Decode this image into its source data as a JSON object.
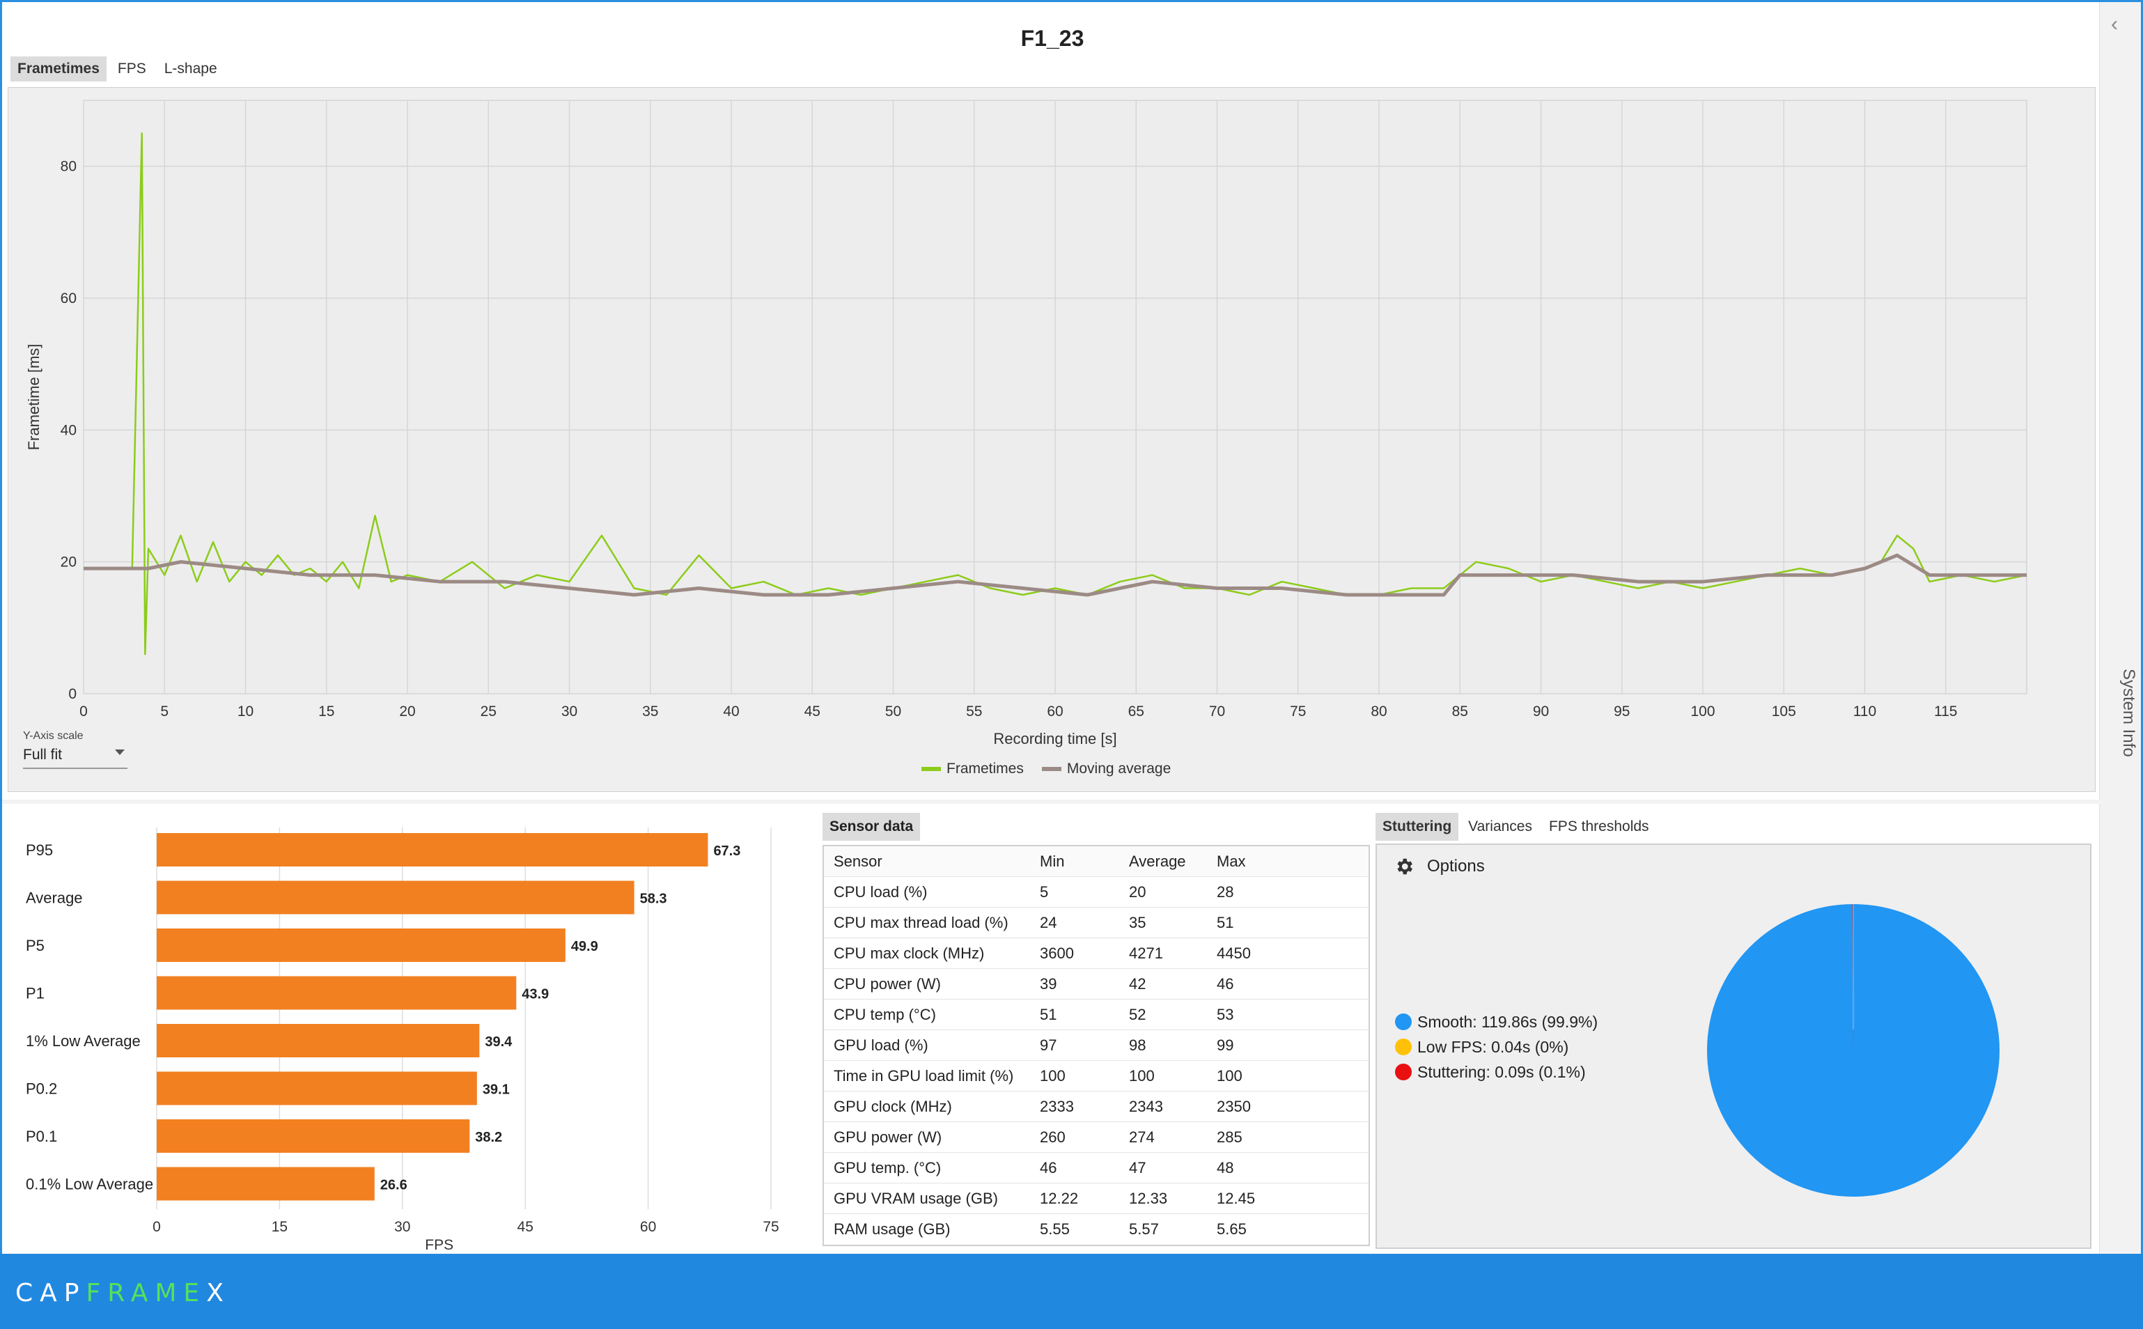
{
  "title": "F1_23",
  "side_panel_label": "System Info",
  "tabs": [
    {
      "label": "Frametimes",
      "active": true
    },
    {
      "label": "FPS",
      "active": false
    },
    {
      "label": "L-shape",
      "active": false
    }
  ],
  "y_axis_scale": {
    "label": "Y-Axis scale",
    "value": "Full fit"
  },
  "chart_data": [
    {
      "type": "line",
      "xlabel": "Recording time [s]",
      "ylabel": "Frametime [ms]",
      "xlim": [
        0,
        120
      ],
      "ylim": [
        0,
        90
      ],
      "xticks": [
        0,
        5,
        10,
        15,
        20,
        25,
        30,
        35,
        40,
        45,
        50,
        55,
        60,
        65,
        70,
        75,
        80,
        85,
        90,
        95,
        100,
        105,
        110,
        115
      ],
      "yticks": [
        0,
        20,
        40,
        60,
        80
      ],
      "grid": true,
      "legend": "bottom-center",
      "series": [
        {
          "name": "Frametimes",
          "color": "#8ccc1a",
          "x": [
            0,
            3,
            3.6,
            3.7,
            3.8,
            4,
            5,
            6,
            7,
            8,
            9,
            10,
            11,
            12,
            13,
            14,
            15,
            16,
            17,
            18,
            19,
            20,
            22,
            24,
            26,
            28,
            30,
            32,
            34,
            36,
            38,
            40,
            42,
            44,
            46,
            48,
            50,
            52,
            54,
            56,
            58,
            60,
            62,
            64,
            66,
            68,
            70,
            72,
            74,
            76,
            78,
            80,
            82,
            84,
            85,
            86,
            88,
            90,
            92,
            94,
            96,
            98,
            100,
            102,
            104,
            106,
            108,
            110,
            111,
            112,
            113,
            114,
            116,
            118,
            120
          ],
          "y": [
            19,
            19,
            85,
            46,
            6,
            22,
            18,
            24,
            17,
            23,
            17,
            20,
            18,
            21,
            18,
            19,
            17,
            20,
            16,
            27,
            17,
            18,
            17,
            20,
            16,
            18,
            17,
            24,
            16,
            15,
            21,
            16,
            17,
            15,
            16,
            15,
            16,
            17,
            18,
            16,
            15,
            16,
            15,
            17,
            18,
            16,
            16,
            15,
            17,
            16,
            15,
            15,
            16,
            16,
            18,
            20,
            19,
            17,
            18,
            17,
            16,
            17,
            16,
            17,
            18,
            19,
            18,
            19,
            20,
            24,
            22,
            17,
            18,
            17,
            18
          ]
        },
        {
          "name": "Moving average",
          "color": "#9c8a85",
          "x": [
            0,
            4,
            6,
            10,
            14,
            18,
            22,
            26,
            30,
            34,
            38,
            42,
            46,
            50,
            54,
            58,
            62,
            66,
            70,
            74,
            78,
            82,
            84,
            85,
            88,
            92,
            96,
            100,
            104,
            108,
            110,
            112,
            114,
            116,
            120
          ],
          "y": [
            19,
            19,
            20,
            19,
            18,
            18,
            17,
            17,
            16,
            15,
            16,
            15,
            15,
            16,
            17,
            16,
            15,
            17,
            16,
            16,
            15,
            15,
            15,
            18,
            18,
            18,
            17,
            17,
            18,
            18,
            19,
            21,
            18,
            18,
            18
          ]
        }
      ]
    },
    {
      "type": "bar",
      "orientation": "horizontal",
      "xlabel": "FPS",
      "xlim": [
        0,
        75
      ],
      "xticks": [
        0,
        15,
        30,
        45,
        60,
        75
      ],
      "categories": [
        "P95",
        "Average",
        "P5",
        "P1",
        "1% Low Average",
        "P0.2",
        "P0.1",
        "0.1% Low Average"
      ],
      "values": [
        67.3,
        58.3,
        49.9,
        43.9,
        39.4,
        39.1,
        38.2,
        26.6
      ],
      "value_labels": [
        "67.3",
        "58.3",
        "49.9",
        "43.9",
        "39.4",
        "39.1",
        "38.2",
        "26.6"
      ],
      "color": "#f28020"
    },
    {
      "type": "pie",
      "categories": [
        "Smooth",
        "Low FPS",
        "Stuttering"
      ],
      "values": [
        99.9,
        0.0,
        0.1
      ],
      "colors": [
        "#2196f3",
        "#ffc107",
        "#e81010"
      ]
    }
  ],
  "sensor": {
    "tab_label": "Sensor data",
    "headers": [
      "Sensor",
      "Min",
      "Average",
      "Max"
    ],
    "rows": [
      [
        "CPU load (%)",
        "5",
        "20",
        "28"
      ],
      [
        "CPU max thread load (%)",
        "24",
        "35",
        "51"
      ],
      [
        "CPU max clock (MHz)",
        "3600",
        "4271",
        "4450"
      ],
      [
        "CPU power (W)",
        "39",
        "42",
        "46"
      ],
      [
        "CPU temp (°C)",
        "51",
        "52",
        "53"
      ],
      [
        "GPU load (%)",
        "97",
        "98",
        "99"
      ],
      [
        "Time in GPU load limit (%)",
        "100",
        "100",
        "100"
      ],
      [
        "GPU clock (MHz)",
        "2333",
        "2343",
        "2350"
      ],
      [
        "GPU power (W)",
        "260",
        "274",
        "285"
      ],
      [
        "GPU temp. (°C)",
        "46",
        "47",
        "48"
      ],
      [
        "GPU VRAM usage (GB)",
        "12.22",
        "12.33",
        "12.45"
      ],
      [
        "RAM usage (GB)",
        "5.55",
        "5.57",
        "5.65"
      ]
    ]
  },
  "stutter": {
    "tabs": [
      {
        "label": "Stuttering",
        "active": true
      },
      {
        "label": "Variances",
        "active": false
      },
      {
        "label": "FPS thresholds",
        "active": false
      }
    ],
    "options_label": "Options",
    "legend": [
      {
        "label": "Smooth:  119.86s (99.9%)",
        "color": "#2196f3"
      },
      {
        "label": "Low FPS:  0.04s (0%)",
        "color": "#ffc107"
      },
      {
        "label": "Stuttering:  0.09s (0.1%)",
        "color": "#e81010"
      }
    ]
  },
  "footer": {
    "logo_a": "CAP",
    "logo_b": "FRAME",
    "logo_c": "X"
  }
}
